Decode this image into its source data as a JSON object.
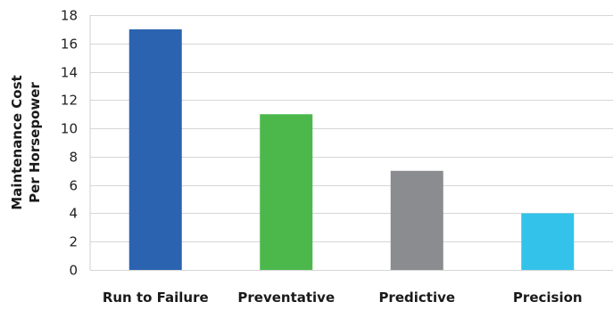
{
  "chart_data": {
    "type": "bar",
    "title": "",
    "xlabel": "",
    "ylabel_lines": [
      "Maintenance Cost",
      "Per Horsepower"
    ],
    "categories": [
      "Run to Failure",
      "Preventative",
      "Predictive",
      "Precision"
    ],
    "values": [
      17,
      11,
      7,
      4
    ],
    "colors": [
      "#2b63b0",
      "#4cb84c",
      "#8b8c8f",
      "#33c3ea"
    ],
    "ylim": [
      0,
      18
    ],
    "yticks": [
      0,
      2,
      4,
      6,
      8,
      10,
      12,
      14,
      16,
      18
    ],
    "grid": true,
    "legend": "none"
  }
}
